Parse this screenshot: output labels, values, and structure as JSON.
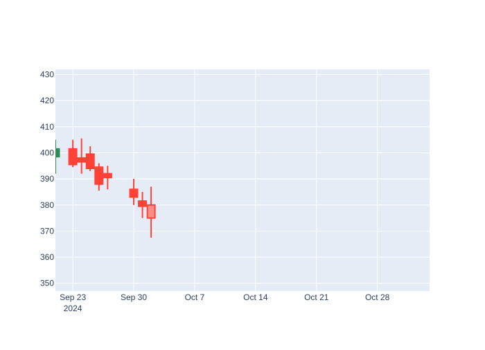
{
  "chart_data": {
    "type": "candlestick",
    "title": "",
    "xlabel": "",
    "ylabel": "",
    "ylim": [
      347,
      432
    ],
    "xlim": [
      "2024-09-21",
      "2024-11-03"
    ],
    "yticks": [
      350,
      360,
      370,
      380,
      390,
      400,
      410,
      420,
      430
    ],
    "xticks": [
      {
        "date": "2024-09-23",
        "label": "Sep 23",
        "sublabel": "2024"
      },
      {
        "date": "2024-09-30",
        "label": "Sep 30"
      },
      {
        "date": "2024-10-07",
        "label": "Oct 7"
      },
      {
        "date": "2024-10-14",
        "label": "Oct 14"
      },
      {
        "date": "2024-10-21",
        "label": "Oct 21"
      },
      {
        "date": "2024-10-28",
        "label": "Oct 28"
      }
    ],
    "grid": true,
    "colors": {
      "increasing": "#2e8b57",
      "decreasing": "#ff4136",
      "plot_bg": "#e5ecf6",
      "grid": "#ffffff",
      "highlight_fill": "#ff8c85"
    },
    "series": [
      {
        "candles": [
          {
            "date": "2024-09-21",
            "open": 398.5,
            "high": 405.0,
            "low": 392.0,
            "close": 401.5,
            "direction": "increasing"
          },
          {
            "date": "2024-09-23",
            "open": 401.5,
            "high": 405.0,
            "low": 394.5,
            "close": 395.5,
            "direction": "decreasing"
          },
          {
            "date": "2024-09-24",
            "open": 398.0,
            "high": 405.5,
            "low": 392.0,
            "close": 396.5,
            "direction": "decreasing"
          },
          {
            "date": "2024-09-25",
            "open": 399.5,
            "high": 402.5,
            "low": 393.0,
            "close": 394.0,
            "direction": "decreasing"
          },
          {
            "date": "2024-09-26",
            "open": 394.5,
            "high": 396.0,
            "low": 385.5,
            "close": 388.0,
            "direction": "decreasing"
          },
          {
            "date": "2024-09-27",
            "open": 392.0,
            "high": 395.0,
            "low": 386.0,
            "close": 390.5,
            "direction": "decreasing"
          },
          {
            "date": "2024-09-30",
            "open": 386.0,
            "high": 390.0,
            "low": 380.0,
            "close": 383.0,
            "direction": "decreasing"
          },
          {
            "date": "2024-10-01",
            "open": 381.5,
            "high": 385.0,
            "low": 375.0,
            "close": 379.5,
            "direction": "decreasing"
          },
          {
            "date": "2024-10-02",
            "open": 380.0,
            "high": 387.0,
            "low": 367.5,
            "close": 375.0,
            "direction": "decreasing",
            "highlight": true
          }
        ]
      }
    ]
  }
}
